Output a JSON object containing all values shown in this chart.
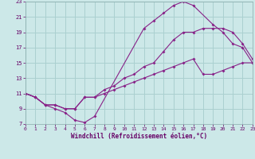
{
  "xlabel": "Windchill (Refroidissement éolien,°C)",
  "bg_color": "#cce8e8",
  "grid_color": "#aad0d0",
  "line_color": "#882288",
  "xlim": [
    0,
    23
  ],
  "ylim": [
    7,
    23
  ],
  "xticks": [
    0,
    1,
    2,
    3,
    4,
    5,
    6,
    7,
    8,
    9,
    10,
    11,
    12,
    13,
    14,
    15,
    16,
    17,
    18,
    19,
    20,
    21,
    22,
    23
  ],
  "yticks": [
    7,
    9,
    11,
    13,
    15,
    17,
    19,
    21,
    23
  ],
  "line1_x": [
    0,
    1,
    2,
    3,
    4,
    5,
    6,
    7,
    12,
    13,
    14,
    15,
    16,
    17,
    19,
    20,
    21,
    22,
    23
  ],
  "line1_y": [
    11,
    10.5,
    9.5,
    9.0,
    8.5,
    7.5,
    7.2,
    8.0,
    19.5,
    20.5,
    21.5,
    22.5,
    23.0,
    22.5,
    20.0,
    19.0,
    17.5,
    17.0,
    15.0
  ],
  "line2_x": [
    0,
    1,
    2,
    3,
    4,
    5,
    6,
    7,
    8,
    9,
    10,
    11,
    12,
    13,
    14,
    15,
    16,
    17,
    18,
    19,
    20,
    21,
    22,
    23
  ],
  "line2_y": [
    11,
    10.5,
    9.5,
    9.5,
    9.0,
    9.0,
    10.5,
    10.5,
    11.5,
    12.0,
    13.0,
    13.5,
    14.5,
    15.0,
    16.5,
    18.0,
    19.0,
    19.0,
    19.5,
    19.5,
    19.5,
    19.0,
    17.5,
    15.5
  ],
  "line3_x": [
    0,
    1,
    2,
    3,
    4,
    5,
    6,
    7,
    8,
    9,
    10,
    11,
    12,
    13,
    14,
    15,
    16,
    17,
    18,
    19,
    20,
    21,
    22,
    23
  ],
  "line3_y": [
    11,
    10.5,
    9.5,
    9.5,
    9.0,
    9.0,
    10.5,
    10.5,
    11.0,
    11.5,
    12.0,
    12.5,
    13.0,
    13.5,
    14.0,
    14.5,
    15.0,
    15.5,
    13.5,
    13.5,
    14.0,
    14.5,
    15.0,
    15.0
  ]
}
